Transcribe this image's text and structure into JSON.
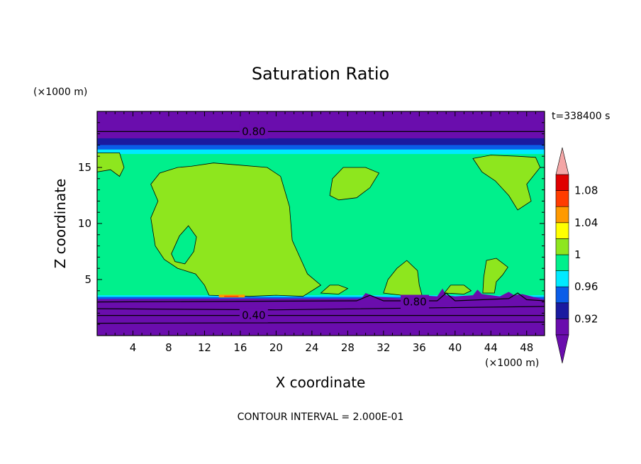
{
  "chart_data": {
    "type": "heatmap",
    "title": "Saturation Ratio",
    "xlabel": "X coordinate",
    "ylabel": "Z coordinate",
    "x_unit": "(×1000 m)",
    "y_unit": "(×1000 m)",
    "time_label": "t=338400 s",
    "contour_note": "CONTOUR INTERVAL = 2.000E-01",
    "xlim": [
      0,
      50
    ],
    "ylim": [
      0,
      20
    ],
    "x_ticks": [
      4,
      8,
      12,
      16,
      20,
      24,
      28,
      32,
      36,
      40,
      44,
      48
    ],
    "y_ticks": [
      5,
      10,
      15
    ],
    "contour_labels": [
      {
        "text": "0.80",
        "x": 17.5,
        "z": 18.2
      },
      {
        "text": "0.80",
        "x": 35.5,
        "z": 3.0
      },
      {
        "text": "0.40",
        "x": 17.5,
        "z": 1.8
      }
    ],
    "colorbar": {
      "labels": [
        "1.08",
        "1.04",
        "1",
        "0.96",
        "0.92"
      ],
      "bins": [
        {
          "range": [
            0.9,
            0.92
          ],
          "color": "#6a0dad"
        },
        {
          "range": [
            0.92,
            0.94
          ],
          "color": "#1a1aa0"
        },
        {
          "range": [
            0.94,
            0.96
          ],
          "color": "#0a5de8"
        },
        {
          "range": [
            0.96,
            0.98
          ],
          "color": "#00eaff"
        },
        {
          "range": [
            0.98,
            1.0
          ],
          "color": "#00f08c"
        },
        {
          "range": [
            1.0,
            1.02
          ],
          "color": "#8ee61e"
        },
        {
          "range": [
            1.02,
            1.04
          ],
          "color": "#ffff00"
        },
        {
          "range": [
            1.04,
            1.06
          ],
          "color": "#ff9a00"
        },
        {
          "range": [
            1.06,
            1.08
          ],
          "color": "#ff3c00"
        },
        {
          "range": [
            1.08,
            1.1
          ],
          "color": "#e00000"
        }
      ],
      "over_color": "#f4a6a6",
      "under_color": "#6a0dad"
    },
    "regions": {
      "below_saturation_color": "#6a0dad",
      "moist_layer_color": "#00f08c",
      "supersaturated_patch_color": "#8ee61e"
    }
  }
}
